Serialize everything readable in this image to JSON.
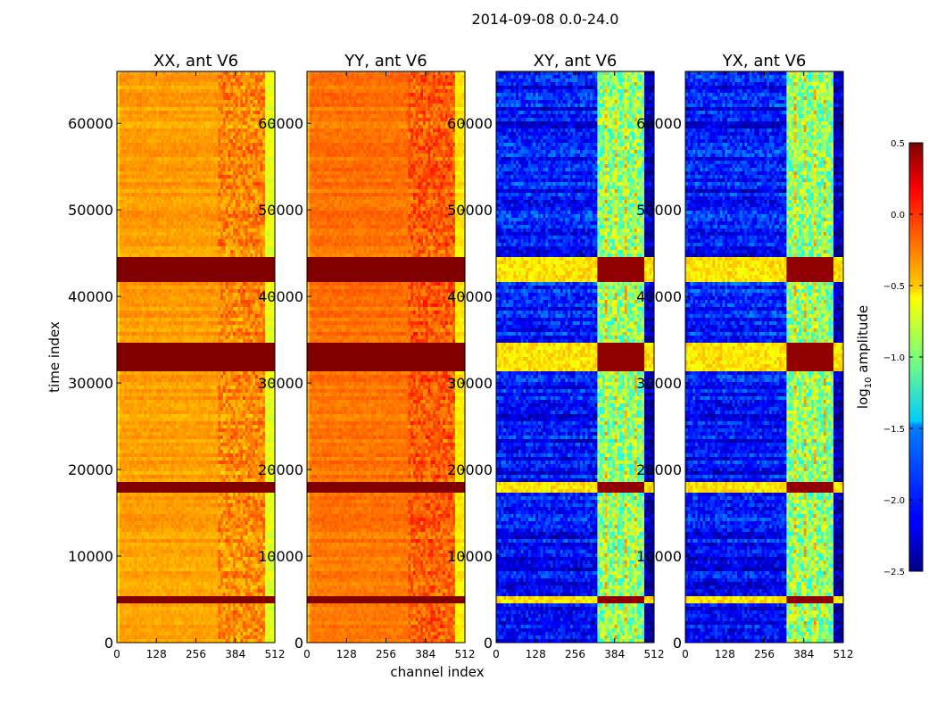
{
  "suptitle": "2014-09-08 0.0-24.0",
  "chart_data": {
    "type": "heatmap",
    "title": "2014-09-08 0.0-24.0",
    "xlabel": "channel index",
    "ylabel": "time index",
    "xlim": [
      0,
      512
    ],
    "ylim": [
      0,
      66000
    ],
    "xticks": [
      0,
      128,
      256,
      384,
      512
    ],
    "yticks": [
      0,
      10000,
      20000,
      30000,
      40000,
      50000,
      60000
    ],
    "panels": [
      {
        "title": "XX, ant V6",
        "pol": "XX",
        "level": -0.35
      },
      {
        "title": "YY, ant V6",
        "pol": "YY",
        "level": -0.22
      },
      {
        "title": "XY, ant V6",
        "pol": "XY",
        "level": -2.1
      },
      {
        "title": "YX, ant V6",
        "pol": "YX",
        "level": -2.1
      }
    ],
    "rfi_channel_band": [
      328,
      480
    ],
    "saturated_time_bands": [
      [
        4600,
        5200
      ],
      [
        17500,
        18500
      ],
      [
        31500,
        34500
      ],
      [
        41500,
        44500
      ]
    ],
    "colorbar": {
      "label_main": "log",
      "label_sub": "10",
      "label_tail": " amplitude",
      "colormap": "jet",
      "vmin": -2.5,
      "vmax": 0.5,
      "ticks": [
        0.5,
        0.0,
        -0.5,
        -1.0,
        -1.5,
        -2.0,
        -2.5
      ],
      "tick_labels": [
        "0.5",
        "0.0",
        "−0.5",
        "−1.0",
        "−1.5",
        "−2.0",
        "−2.5"
      ]
    }
  }
}
